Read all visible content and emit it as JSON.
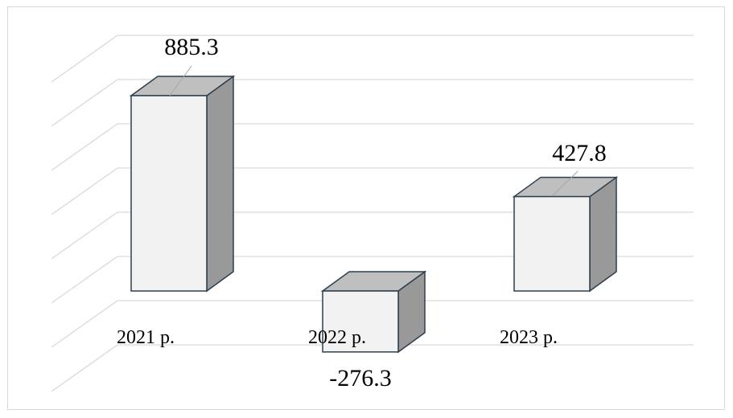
{
  "chart_data": {
    "type": "bar",
    "style": "3d-column",
    "categories": [
      "2021 р.",
      "2022 р.",
      "2023 р."
    ],
    "values": [
      885.3,
      -276.3,
      427.8
    ],
    "data_labels": [
      "885.3",
      "-276.3",
      "427.8"
    ],
    "title": "",
    "xlabel": "",
    "ylabel": "",
    "ylim": [
      -400,
      1000
    ],
    "grid": true,
    "legend": "none"
  },
  "colors": {
    "bar_front": "#f2f2f2",
    "bar_side": "#999999",
    "bar_top": "#bfbfbf",
    "bar_edge": "#2e3e4e",
    "grid": "#d9d9d9",
    "border": "#d9d9d9"
  }
}
